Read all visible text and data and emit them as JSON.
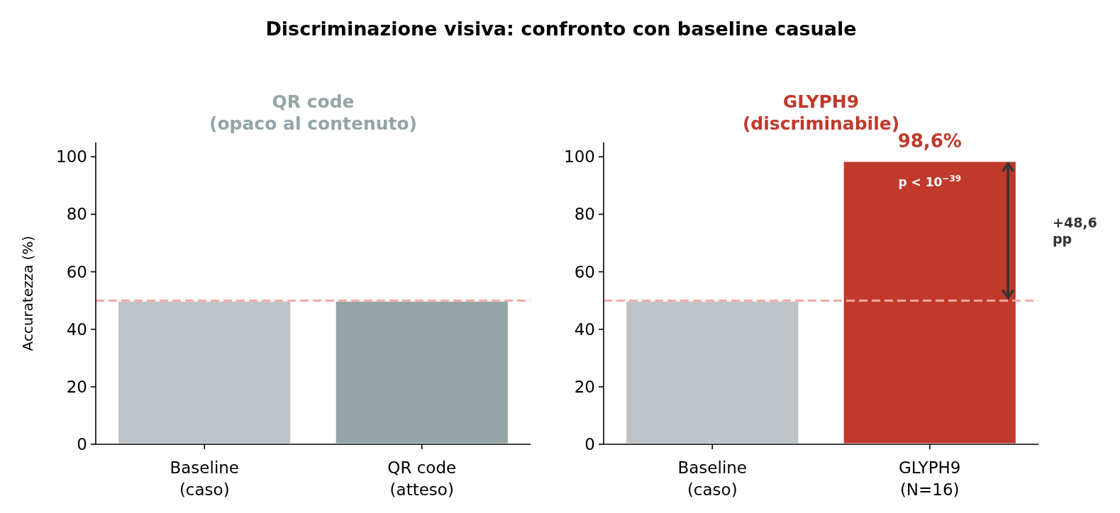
{
  "chart_data": [
    {
      "type": "bar",
      "title": "Discriminazione visiva: confronto con baseline casuale",
      "subtitle": "QR code\n(opaco al contenuto)",
      "ylabel": "Accuratezza (%)",
      "categories": [
        "Baseline\n(caso)",
        "QR code\n(atteso)"
      ],
      "values": [
        50,
        50
      ],
      "colors": [
        "#bdc3c7",
        "#95a5a6"
      ],
      "ylim": [
        0,
        105
      ],
      "yticks": [
        0,
        20,
        40,
        60,
        80,
        100
      ],
      "grid": false,
      "ref_lines": [
        {
          "axis": "y",
          "value": 50,
          "color": "#f1a9a0",
          "line_style": "dashed"
        }
      ]
    },
    {
      "type": "bar",
      "subtitle": "GLYPH9\n(discriminabile)",
      "categories": [
        "Baseline\n(caso)",
        "GLYPH9\n(N=16)"
      ],
      "values": [
        50,
        98.6
      ],
      "colors": [
        "#bdc3c7",
        "#c0392b"
      ],
      "value_labels": [
        null,
        "98,6%"
      ],
      "ylim": [
        0,
        105
      ],
      "yticks": [
        0,
        20,
        40,
        60,
        80,
        100
      ],
      "grid": false,
      "ref_lines": [
        {
          "axis": "y",
          "value": 50,
          "color": "#f1a9a0",
          "line_style": "dashed"
        }
      ],
      "annotations": [
        "p < 10$^{−39}$",
        "+48,6\npp"
      ]
    }
  ]
}
